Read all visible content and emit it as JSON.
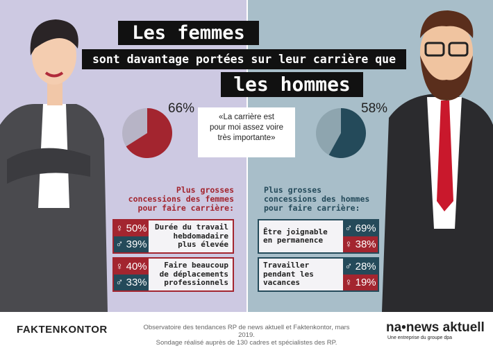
{
  "title": {
    "line1": "Les femmes",
    "line2": "sont davantage portées sur leur carrière que",
    "line3": "les hommes"
  },
  "pies": {
    "women": {
      "value": 66,
      "label": "66%"
    },
    "men": {
      "value": 58,
      "label": "58%"
    }
  },
  "quote": {
    "line1": "«La carrière est",
    "line2": "pour moi assez voire",
    "line3": "très importante»"
  },
  "women_section": {
    "heading": [
      "Plus grosses",
      "concessions des femmes",
      "pour faire carrière:"
    ],
    "items": [
      {
        "text": [
          "Durée du travail",
          "hebdomadaire",
          "plus élevée"
        ],
        "women": "50%",
        "men": "39%"
      },
      {
        "text": [
          "Faire beaucoup",
          "de déplacements",
          "professionnels"
        ],
        "women": "40%",
        "men": "33%"
      }
    ]
  },
  "men_section": {
    "heading": [
      "Plus grosses",
      "concessions des hommes",
      "pour faire carrière:"
    ],
    "items": [
      {
        "text": [
          "Être joignable",
          "en permanence"
        ],
        "men": "69%",
        "women": "38%"
      },
      {
        "text": [
          "Travailler",
          "pendant les",
          "vacances"
        ],
        "men": "28%",
        "women": "19%"
      }
    ]
  },
  "footer": {
    "logo_left": "FAKTENKONTOR",
    "source_line1": "Observatoire des tendances RP de news aktuell et Faktenkontor, mars 2019.",
    "source_line2": "Sondage réalisé auprès de 130 cadres et spécialistes des RP.",
    "logo_right": "na•news aktuell",
    "logo_right_sub": "Une entreprise du groupe dpa"
  },
  "colors": {
    "women": "#a3252f",
    "men": "#244a5a"
  }
}
